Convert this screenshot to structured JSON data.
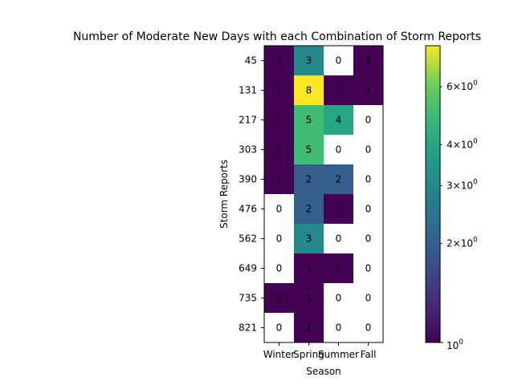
{
  "chart_data": {
    "type": "heatmap",
    "title": "Number of Moderate New Days with each Combination of Storm Reports",
    "xlabel": "Season",
    "ylabel": "Storm Reports",
    "x_categories": [
      "Winter",
      "Spring",
      "Summer",
      "Fall"
    ],
    "y_categories": [
      "45",
      "131",
      "217",
      "303",
      "390",
      "476",
      "562",
      "649",
      "735",
      "821"
    ],
    "values": [
      [
        1,
        3,
        0,
        1
      ],
      [
        1,
        8,
        1,
        1
      ],
      [
        1,
        5,
        4,
        0
      ],
      [
        1,
        5,
        0,
        0
      ],
      [
        1,
        2,
        2,
        0
      ],
      [
        0,
        2,
        1,
        0
      ],
      [
        0,
        3,
        0,
        0
      ],
      [
        0,
        1,
        1,
        0
      ],
      [
        1,
        1,
        0,
        0
      ],
      [
        0,
        1,
        0,
        0
      ]
    ],
    "color_scale": "log",
    "colormap": "viridis",
    "zero_color": "#ffffff",
    "colorbar": {
      "range": [
        1,
        8
      ],
      "major_ticks": [
        {
          "value": 1,
          "label": "10^0"
        }
      ],
      "minor_ticks": [
        {
          "value": 2,
          "label": "2×10^0"
        },
        {
          "value": 3,
          "label": "3×10^0"
        },
        {
          "value": 4,
          "label": "4×10^0"
        },
        {
          "value": 6,
          "label": "6×10^0"
        }
      ]
    }
  }
}
